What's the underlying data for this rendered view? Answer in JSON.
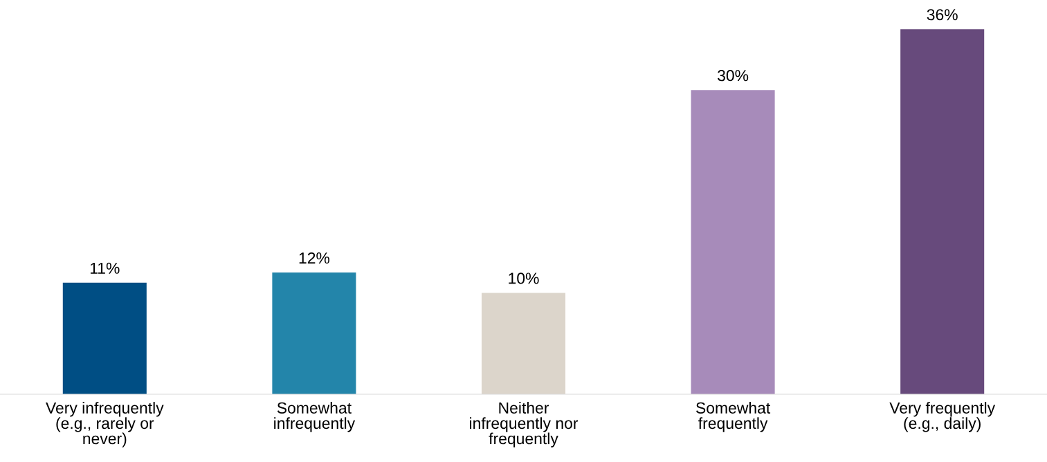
{
  "chart_data": {
    "type": "bar",
    "categories": [
      "Very infrequently\n(e.g., rarely or\nnever)",
      "Somewhat\ninfrequently",
      "Neither\ninfrequently nor\nfrequently",
      "Somewhat\nfrequently",
      "Very frequently\n(e.g., daily)"
    ],
    "values": [
      11,
      12,
      10,
      30,
      36
    ],
    "colors": [
      "#004e84",
      "#2385aa",
      "#dcd5cb",
      "#a78bba",
      "#674a7c"
    ],
    "value_labels": [
      "11%",
      "12%",
      "10%",
      "30%",
      "36%"
    ],
    "grid": false,
    "legend": false
  }
}
